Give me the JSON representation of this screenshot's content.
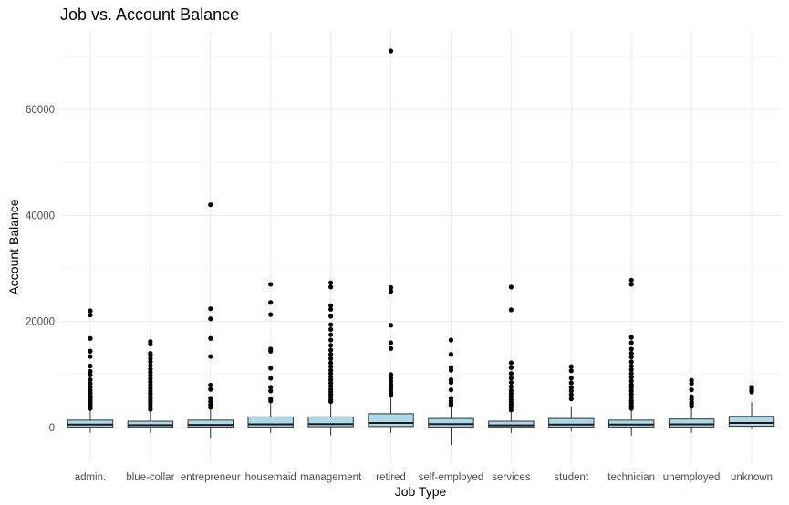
{
  "chart_data": {
    "type": "boxplot",
    "title": "Job vs. Account Balance",
    "xlabel": "Job Type",
    "ylabel": "Account Balance",
    "ylim": [
      -6000,
      75000
    ],
    "y_ticks": [
      0,
      20000,
      40000,
      60000
    ],
    "grid": true,
    "box_fill": "#add8e6",
    "box_stroke": "#333333",
    "outlier_color": "#000000",
    "categories": [
      "admin.",
      "blue-collar",
      "entrepreneur",
      "housemaid",
      "management",
      "retired",
      "self-employed",
      "services",
      "student",
      "technician",
      "unemployed",
      "unknown"
    ],
    "boxes": [
      {
        "category": "admin.",
        "min": -1000,
        "q1": 100,
        "median": 550,
        "q3": 1400,
        "max": 3200,
        "outliers": [
          22000,
          21200,
          16800,
          14400,
          13400,
          11600,
          10600,
          9900,
          9000,
          8300,
          7600,
          7000,
          6500,
          6000,
          5600,
          5200,
          4800,
          4400,
          4000,
          3600
        ]
      },
      {
        "category": "blue-collar",
        "min": -1000,
        "q1": 50,
        "median": 450,
        "q3": 1200,
        "max": 2900,
        "outliers": [
          16200,
          15700,
          14000,
          13600,
          13000,
          12400,
          11700,
          11000,
          10400,
          9800,
          9200,
          8600,
          8000,
          7400,
          6900,
          6400,
          5900,
          5400,
          4900,
          4400,
          3900,
          3400
        ]
      },
      {
        "category": "entrepreneur",
        "min": -2100,
        "q1": 80,
        "median": 500,
        "q3": 1400,
        "max": 3300,
        "outliers": [
          42000,
          22400,
          20500,
          16800,
          13400,
          8000,
          7200,
          5500,
          4900,
          4300,
          3800
        ]
      },
      {
        "category": "housemaid",
        "min": -1000,
        "q1": 100,
        "median": 600,
        "q3": 2000,
        "max": 4500,
        "outliers": [
          27000,
          23600,
          21300,
          14800,
          14400,
          11200,
          9300,
          7600,
          6900,
          5400,
          5000
        ]
      },
      {
        "category": "management",
        "min": -1500,
        "q1": 150,
        "median": 650,
        "q3": 2000,
        "max": 4700,
        "outliers": [
          27300,
          26500,
          23000,
          22300,
          21000,
          19400,
          18500,
          17500,
          16500,
          15500,
          14600,
          13800,
          13000,
          12200,
          11500,
          10800,
          10200,
          9600,
          9000,
          8400,
          7800,
          7200,
          6700,
          6200,
          5700,
          5200,
          4900
        ]
      },
      {
        "category": "retired",
        "min": -1000,
        "q1": 200,
        "median": 850,
        "q3": 2600,
        "max": 5900,
        "outliers": [
          71000,
          26400,
          25700,
          19300,
          16000,
          14900,
          10000,
          9300,
          8700,
          8100,
          7500,
          7000,
          6500,
          6100
        ]
      },
      {
        "category": "self-employed",
        "min": -3300,
        "q1": 100,
        "median": 650,
        "q3": 1700,
        "max": 4000,
        "outliers": [
          16500,
          13800,
          11300,
          10800,
          9000,
          8500,
          7100,
          5500,
          5000,
          4600,
          4200
        ]
      },
      {
        "category": "services",
        "min": -1000,
        "q1": 50,
        "median": 400,
        "q3": 1200,
        "max": 2900,
        "outliers": [
          26500,
          22200,
          12200,
          11300,
          10200,
          9300,
          8500,
          7700,
          7000,
          6400,
          5800,
          5300,
          4800,
          4300,
          3800,
          3300
        ]
      },
      {
        "category": "student",
        "min": -700,
        "q1": 100,
        "median": 550,
        "q3": 1700,
        "max": 4000,
        "outliers": [
          11500,
          10700,
          9300,
          8400,
          7500,
          6900,
          6200,
          5400
        ]
      },
      {
        "category": "technician",
        "min": -1500,
        "q1": 100,
        "median": 550,
        "q3": 1400,
        "max": 3300,
        "outliers": [
          27800,
          27000,
          17000,
          16000,
          14800,
          14000,
          13300,
          12400,
          11600,
          10900,
          10200,
          9500,
          8800,
          8100,
          7500,
          6900,
          6300,
          5700,
          5100,
          4600,
          4100,
          3600
        ]
      },
      {
        "category": "unemployed",
        "min": -1000,
        "q1": 100,
        "median": 600,
        "q3": 1600,
        "max": 3600,
        "outliers": [
          8900,
          8300,
          7100,
          5800,
          5300,
          4800,
          4400,
          4000
        ]
      },
      {
        "category": "unknown",
        "min": -300,
        "q1": 250,
        "median": 850,
        "q3": 2100,
        "max": 4800,
        "outliers": [
          7600,
          7300,
          7000,
          6700
        ]
      }
    ]
  }
}
